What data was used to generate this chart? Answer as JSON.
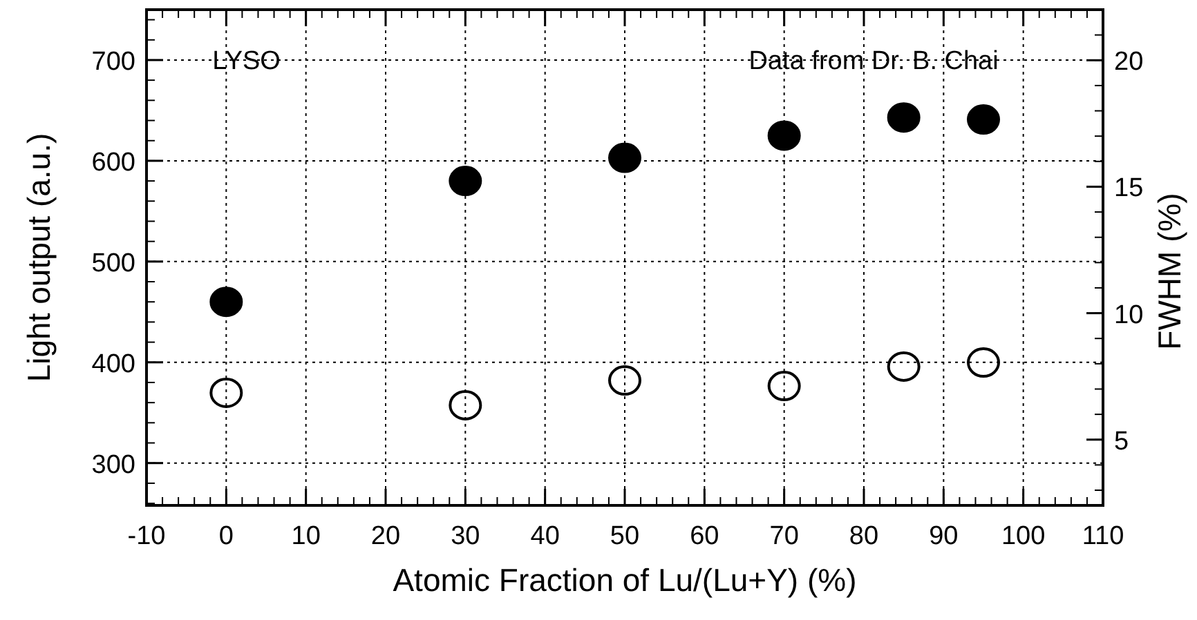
{
  "chart_data": {
    "type": "scatter",
    "xlabel": "Atomic Fraction of Lu/(Lu+Y) (%)",
    "ylabel": "Light output (a.u.)",
    "y2label": "FWHM (%)",
    "annotations": [
      "LYSO",
      "Data from Dr. B. Chai"
    ],
    "xlim": [
      -10,
      110
    ],
    "xticks": [
      -10,
      0,
      10,
      20,
      30,
      40,
      50,
      60,
      70,
      80,
      90,
      100,
      110
    ],
    "ylim": [
      258,
      750
    ],
    "yticks": [
      300,
      400,
      500,
      600,
      700
    ],
    "y2lim": [
      2.4,
      22
    ],
    "y2ticks": [
      5,
      10,
      15,
      20
    ],
    "grid": true,
    "marker": "circle",
    "series": [
      {
        "color": "#000000",
        "x": [
          0,
          30,
          50,
          70,
          85,
          95
        ],
        "values": [
          460,
          580,
          603,
          625,
          643,
          641
        ]
      },
      {
        "color": "#000000",
        "axis": "y2",
        "x": [
          0,
          30,
          50,
          70,
          85,
          95
        ],
        "values": [
          6.85,
          6.36,
          7.34,
          7.12,
          7.89,
          8.05
        ]
      }
    ]
  }
}
